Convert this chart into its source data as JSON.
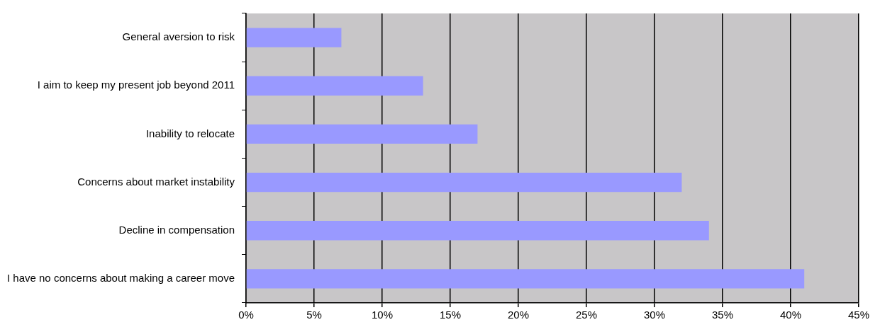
{
  "chart_data": {
    "type": "bar",
    "orientation": "horizontal",
    "categories": [
      "General aversion to risk",
      "I aim to keep my present job beyond 2011",
      "Inability to relocate",
      "Concerns about market instability",
      "Decline in compensation",
      "I have no concerns about making a career move"
    ],
    "values": [
      7,
      13,
      17,
      32,
      34,
      41
    ],
    "color": "#9999ff",
    "xlim": [
      0,
      45
    ],
    "xticks": [
      {
        "value": 0,
        "label": "0%"
      },
      {
        "value": 5,
        "label": "5%"
      },
      {
        "value": 10,
        "label": "10%"
      },
      {
        "value": 15,
        "label": "15%"
      },
      {
        "value": 20,
        "label": "20%"
      },
      {
        "value": 25,
        "label": "25%"
      },
      {
        "value": 30,
        "label": "30%"
      },
      {
        "value": 35,
        "label": "35%"
      },
      {
        "value": 40,
        "label": "40%"
      },
      {
        "value": 45,
        "label": "45%"
      }
    ],
    "grid": "x",
    "legend": false
  }
}
